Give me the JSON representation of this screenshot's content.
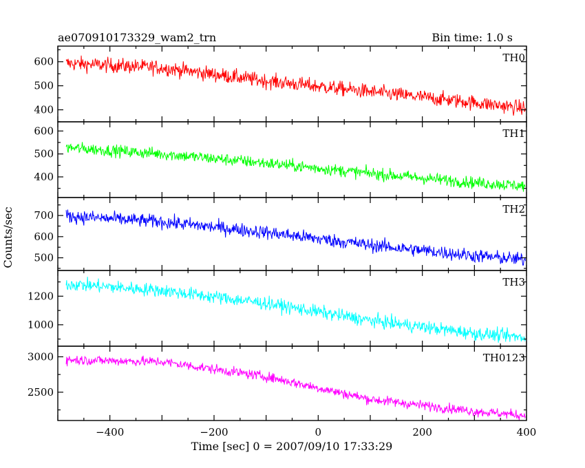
{
  "header": {
    "source_name": "ae070910173329_wam2_trn",
    "bin_time": "Bin time: 1.0 s"
  },
  "axes": {
    "ylabel": "Counts/sec",
    "xlabel": "Time [sec] 0 = 2007/09/10 17:33:29"
  },
  "chart_data": {
    "type": "line",
    "x": {
      "start": -500,
      "end": 400,
      "step": 1.0
    },
    "xlim": [
      -500,
      400
    ],
    "xticks": [
      -400,
      -200,
      0,
      200,
      400
    ],
    "xtick_labels": [
      "−400",
      "−200",
      "0",
      "200",
      "400"
    ],
    "panels": [
      {
        "name": "TH0",
        "color": "#ff0000",
        "ylim": [
          350,
          665
        ],
        "yticks": [
          400,
          500,
          600
        ],
        "ytick_labels": [
          "400",
          "500",
          "600"
        ],
        "trend_x": [
          -500,
          -300,
          -100,
          100,
          300,
          400
        ],
        "trend_y": [
          595,
          575,
          520,
          475,
          430,
          405
        ],
        "noise_amp": 40
      },
      {
        "name": "TH1",
        "color": "#00ff00",
        "ylim": [
          310,
          640
        ],
        "yticks": [
          400,
          500,
          600
        ],
        "ytick_labels": [
          "400",
          "500",
          "600"
        ],
        "trend_x": [
          -500,
          -300,
          -100,
          100,
          300,
          400
        ],
        "trend_y": [
          530,
          500,
          460,
          415,
          375,
          360
        ],
        "noise_amp": 34
      },
      {
        "name": "TH2",
        "color": "#0000ff",
        "ylim": [
          440,
          785
        ],
        "yticks": [
          500,
          600,
          700
        ],
        "ytick_labels": [
          "500",
          "600",
          "700"
        ],
        "trend_x": [
          -500,
          -300,
          -100,
          100,
          300,
          400
        ],
        "trend_y": [
          700,
          670,
          620,
          560,
          510,
          490
        ],
        "noise_amp": 42
      },
      {
        "name": "TH3",
        "color": "#00ffff",
        "ylim": [
          850,
          1380
        ],
        "yticks": [
          1000,
          1200
        ],
        "ytick_labels": [
          "1000",
          "1200"
        ],
        "trend_x": [
          -500,
          -300,
          -100,
          100,
          300,
          400
        ],
        "trend_y": [
          1290,
          1240,
          1150,
          1030,
          940,
          910
        ],
        "noise_amp": 60
      },
      {
        "name": "TH0123",
        "color": "#ff00ff",
        "ylim": [
          2100,
          3150
        ],
        "yticks": [
          2500,
          3000
        ],
        "ytick_labels": [
          "2500",
          "3000"
        ],
        "trend_x": [
          -500,
          -300,
          -100,
          100,
          300,
          400
        ],
        "trend_y": [
          2960,
          2930,
          2720,
          2400,
          2230,
          2170
        ],
        "noise_amp": 90
      }
    ]
  }
}
